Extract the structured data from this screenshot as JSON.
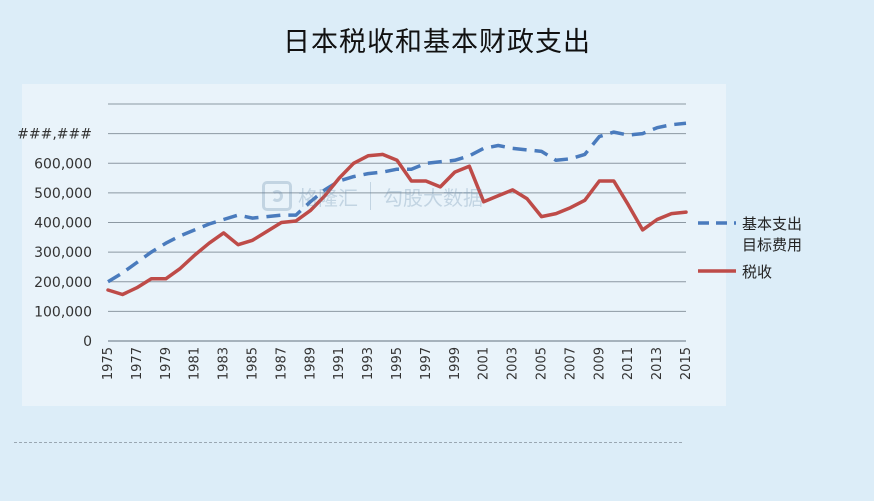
{
  "title": "日本税收和基本财政支出",
  "watermark": {
    "left": "格隆汇",
    "right": "勾股大数据"
  },
  "chart_data": {
    "type": "line",
    "title": "日本税收和基本财政支出",
    "xlabel": "",
    "ylabel": "",
    "ylim": [
      0,
      800000
    ],
    "yticks": [
      0,
      100000,
      200000,
      300000,
      400000,
      500000,
      600000,
      700000
    ],
    "ytick_labels": [
      "0",
      "100,000",
      "200,000",
      "300,000",
      "400,000",
      "500,000",
      "600,000",
      "###,###"
    ],
    "grid": true,
    "legend_position": "right",
    "x_years": [
      1975,
      1976,
      1977,
      1978,
      1979,
      1980,
      1981,
      1982,
      1983,
      1984,
      1985,
      1986,
      1987,
      1988,
      1989,
      1990,
      1991,
      1992,
      1993,
      1994,
      1995,
      1996,
      1997,
      1998,
      1999,
      2000,
      2001,
      2002,
      2003,
      2004,
      2005,
      2006,
      2007,
      2008,
      2009,
      2010,
      2011,
      2012,
      2013,
      2014,
      2015
    ],
    "x_tick_labels": [
      "1975",
      "1977",
      "1979",
      "1981",
      "1983",
      "1985",
      "1987",
      "1989",
      "1991",
      "1993",
      "1995",
      "1997",
      "1999",
      "2001",
      "2003",
      "2005",
      "2007",
      "2009",
      "2011",
      "2013",
      "2015"
    ],
    "series": [
      {
        "name": "基本支出目标费用",
        "style": "dashed",
        "color": "#4a7bbd",
        "values": [
          200000,
          230000,
          265000,
          300000,
          330000,
          355000,
          375000,
          395000,
          410000,
          425000,
          415000,
          420000,
          425000,
          425000,
          470000,
          510000,
          540000,
          555000,
          565000,
          570000,
          580000,
          580000,
          600000,
          605000,
          610000,
          625000,
          650000,
          660000,
          650000,
          645000,
          640000,
          610000,
          615000,
          630000,
          690000,
          705000,
          695000,
          700000,
          720000,
          730000,
          735000
        ]
      },
      {
        "name": "税收",
        "style": "solid",
        "color": "#be4b48",
        "values": [
          172000,
          157000,
          180000,
          210000,
          210000,
          245000,
          290000,
          330000,
          365000,
          325000,
          340000,
          370000,
          400000,
          405000,
          440000,
          490000,
          550000,
          600000,
          625000,
          630000,
          610000,
          540000,
          540000,
          520000,
          570000,
          590000,
          470000,
          490000,
          510000,
          480000,
          420000,
          430000,
          450000,
          475000,
          540000,
          540000,
          460000,
          375000,
          410000,
          430000,
          435000
        ]
      }
    ]
  }
}
